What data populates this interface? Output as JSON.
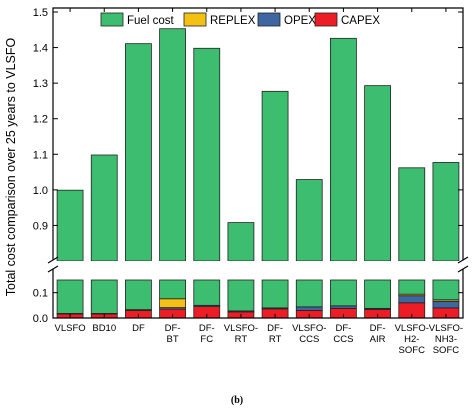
{
  "chart_data": {
    "type": "bar",
    "stacked": true,
    "ylabel": "Total cost comparison over 25 years to VLSFO",
    "caption": "(b)",
    "axis_break": {
      "lower_range": [
        0,
        0.15
      ],
      "upper_range": [
        0.8,
        1.5
      ]
    },
    "yticks_lower": [
      "0.0",
      "0.1"
    ],
    "yticks_upper": [
      "0.9",
      "1.0",
      "1.1",
      "1.2",
      "1.3",
      "1.4",
      "1.5"
    ],
    "grid": false,
    "legend_position": "top",
    "categories": [
      [
        "VLSFO"
      ],
      [
        "BD10"
      ],
      [
        "DF"
      ],
      [
        "DF-",
        "BT"
      ],
      [
        "DF-",
        "FC"
      ],
      [
        "VLSFO-",
        "RT"
      ],
      [
        "DF-",
        "RT"
      ],
      [
        "VLSFO-",
        "CCS"
      ],
      [
        "DF-",
        "CCS"
      ],
      [
        "DF-",
        "AIR"
      ],
      [
        "VLSFO-",
        "H2-",
        "SOFC"
      ],
      [
        "VLSFO-",
        "NH3-",
        "SOFC"
      ]
    ],
    "series": [
      {
        "name": "CAPEX",
        "color": "#ee1c25",
        "values": [
          0.016,
          0.016,
          0.03,
          0.035,
          0.045,
          0.024,
          0.036,
          0.03,
          0.038,
          0.034,
          0.06,
          0.04
        ]
      },
      {
        "name": "OPEX",
        "color": "#3e66a0",
        "values": [
          0.002,
          0.002,
          0.003,
          0.006,
          0.005,
          0.004,
          0.004,
          0.014,
          0.01,
          0.004,
          0.028,
          0.026
        ]
      },
      {
        "name": "REPLEX",
        "color": "#f5c014",
        "values": [
          0,
          0,
          0,
          0.035,
          0,
          0,
          0,
          0,
          0,
          0,
          0.006,
          0.006
        ]
      },
      {
        "name": "Fuel cost",
        "color": "#3dbd70",
        "values": [
          0.981,
          1.08,
          1.378,
          1.377,
          1.348,
          0.88,
          1.237,
          0.985,
          1.378,
          1.255,
          0.968,
          1.005
        ]
      }
    ],
    "totals": [
      0.999,
      1.098,
      1.411,
      1.453,
      1.398,
      0.908,
      1.277,
      1.029,
      1.426,
      1.293,
      1.062,
      1.077
    ]
  }
}
